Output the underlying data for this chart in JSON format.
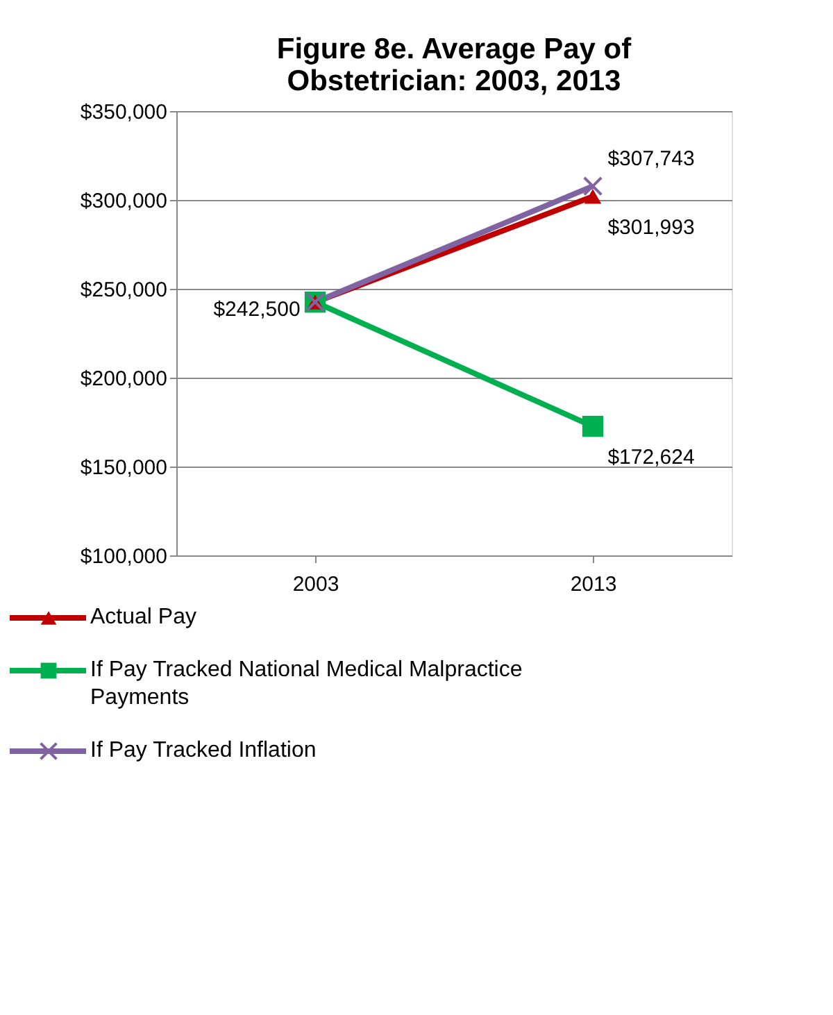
{
  "chart_data": {
    "type": "line",
    "title": "Figure 8e. Average Pay of Obstetrician: 2003, 2013",
    "categories": [
      "2003",
      "2013"
    ],
    "series": [
      {
        "name": "Actual Pay",
        "color": "#c00000",
        "marker": "triangle",
        "values": [
          242500,
          301993
        ],
        "value_labels": [
          "$242,500",
          "$301,993"
        ]
      },
      {
        "name": "If Pay Tracked National Medical  Malpractice Payments",
        "color": "#00b050",
        "marker": "square",
        "values": [
          242500,
          172624
        ],
        "value_labels": [
          null,
          "$172,624"
        ]
      },
      {
        "name": "If Pay Tracked Inflation",
        "color": "#8064a2",
        "marker": "cross",
        "values": [
          242500,
          307743
        ],
        "value_labels": [
          null,
          "$307,743"
        ]
      }
    ],
    "ylim": [
      100000,
      350000
    ],
    "yticks": [
      {
        "value": 100000,
        "label": "$100,000"
      },
      {
        "value": 150000,
        "label": "$150,000"
      },
      {
        "value": 200000,
        "label": "$200,000"
      },
      {
        "value": 250000,
        "label": "$250,000"
      },
      {
        "value": 300000,
        "label": "$300,000"
      },
      {
        "value": 350000,
        "label": "$350,000"
      }
    ],
    "grid": "y",
    "legend": "bottom"
  }
}
